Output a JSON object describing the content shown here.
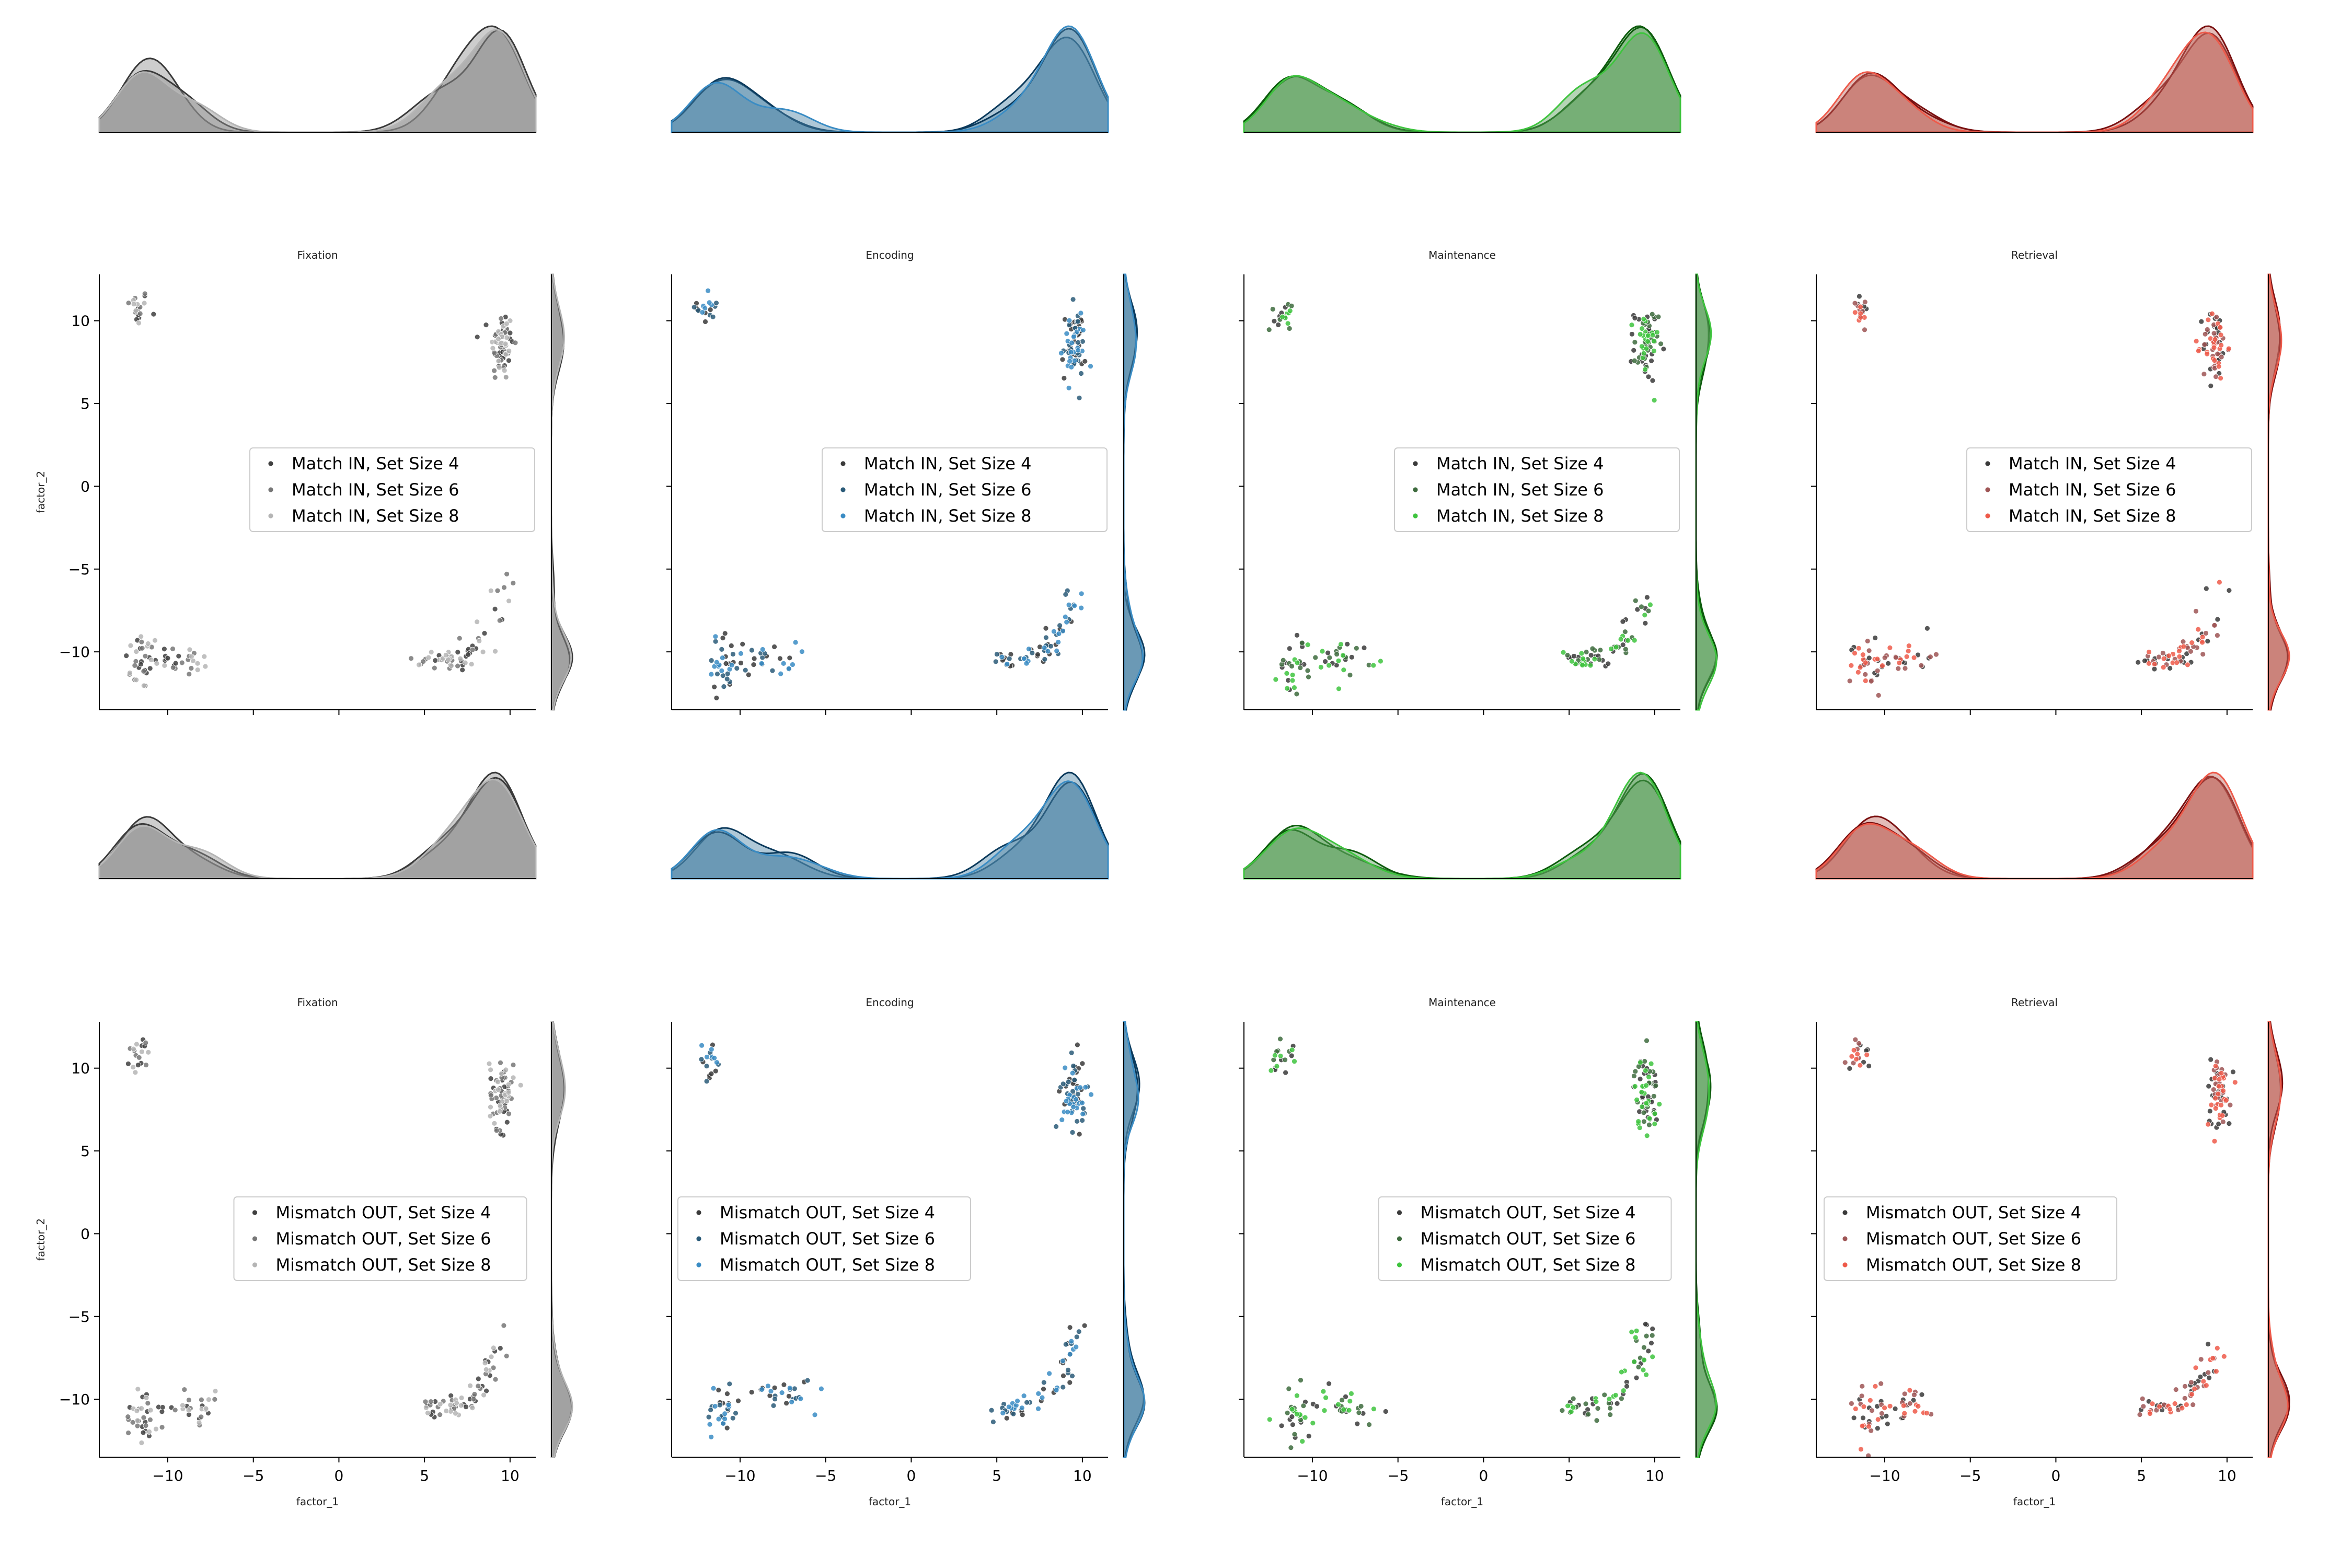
{
  "figure": {
    "xlabel": "factor_1",
    "ylabel": "factor_2"
  },
  "chart_data": [
    {
      "type": "scatter",
      "title": "Fixation",
      "condition": "match",
      "color_key": "gray",
      "xlabel": "",
      "ylabel": "factor_2",
      "xlim": [
        -14,
        11.5
      ],
      "ylim": [
        -13.5,
        12.8
      ],
      "xticks": [
        "-10",
        "-5",
        "0",
        "5",
        "10"
      ],
      "yticks": [
        "10",
        "5",
        "0",
        "−5",
        "−10"
      ],
      "legend": [
        "Match IN, Set Size 4",
        "Match IN, Set Size 6",
        "Match IN, Set Size 8"
      ],
      "legend_position": "center-right",
      "clusters": [
        {
          "x": -11.8,
          "y": 10.8
        },
        {
          "x": -11.5,
          "y": -10.6
        },
        {
          "x": -9,
          "y": -10.5
        },
        {
          "x": 9.5,
          "y": 8.5
        },
        {
          "x": 8,
          "y": -9.5
        }
      ]
    },
    {
      "type": "scatter",
      "title": "Encoding",
      "condition": "match",
      "color_key": "blue",
      "xlabel": "",
      "ylabel": "",
      "xlim": [
        -14,
        11.5
      ],
      "ylim": [
        -13.5,
        12.8
      ],
      "xticks": [
        "-10",
        "-5",
        "0",
        "5",
        "10"
      ],
      "yticks": [
        "10",
        "5",
        "0",
        "−5",
        "−10"
      ],
      "legend": [
        "Match IN, Set Size 4",
        "Match IN, Set Size 6",
        "Match IN, Set Size 8"
      ],
      "legend_position": "center-right",
      "clusters": [
        {
          "x": -11.8,
          "y": 10.8
        },
        {
          "x": -11,
          "y": -10.7
        },
        {
          "x": -8.5,
          "y": -10.4
        },
        {
          "x": 9.5,
          "y": 8.5
        },
        {
          "x": 8,
          "y": -9.5
        }
      ]
    },
    {
      "type": "scatter",
      "title": "Maintenance",
      "condition": "match",
      "color_key": "green",
      "xlabel": "",
      "ylabel": "",
      "xlim": [
        -14,
        11.5
      ],
      "ylim": [
        -13.5,
        12.8
      ],
      "xticks": [
        "-10",
        "-5",
        "0",
        "5",
        "10"
      ],
      "yticks": [
        "10",
        "5",
        "0",
        "−5",
        "−10"
      ],
      "legend": [
        "Match IN, Set Size 4",
        "Match IN, Set Size 6",
        "Match IN, Set Size 8"
      ],
      "legend_position": "center-right",
      "clusters": [
        {
          "x": -11.8,
          "y": 10.5
        },
        {
          "x": -11,
          "y": -10.8
        },
        {
          "x": -8,
          "y": -10.3
        },
        {
          "x": 9.5,
          "y": 8.5
        },
        {
          "x": 8,
          "y": -9.5
        }
      ]
    },
    {
      "type": "scatter",
      "title": "Retrieval",
      "condition": "match",
      "color_key": "red",
      "xlabel": "",
      "ylabel": "",
      "xlim": [
        -14,
        11.5
      ],
      "ylim": [
        -13.5,
        12.8
      ],
      "xticks": [
        "-10",
        "-5",
        "0",
        "5",
        "10"
      ],
      "yticks": [
        "10",
        "5",
        "0",
        "−5",
        "−10"
      ],
      "legend": [
        "Match IN, Set Size 4",
        "Match IN, Set Size 6",
        "Match IN, Set Size 8"
      ],
      "legend_position": "center-right",
      "clusters": [
        {
          "x": -11.5,
          "y": 10.9
        },
        {
          "x": -11,
          "y": -10.8
        },
        {
          "x": -9,
          "y": -10.3
        },
        {
          "x": 9.3,
          "y": 8.5
        },
        {
          "x": 8,
          "y": -9.5
        }
      ]
    },
    {
      "type": "scatter",
      "title": "Fixation",
      "condition": "mismatch",
      "color_key": "gray",
      "xlabel": "factor_1",
      "ylabel": "factor_2",
      "xlim": [
        -14,
        11.5
      ],
      "ylim": [
        -13.5,
        12.8
      ],
      "xticks": [
        "−10",
        "−5",
        "0",
        "5",
        "10"
      ],
      "yticks": [
        "10",
        "5",
        "0",
        "−5",
        "−10"
      ],
      "legend": [
        "Mismatch OUT, Set Size 4",
        "Mismatch OUT, Set Size 6",
        "Mismatch OUT, Set Size 8"
      ],
      "legend_position": "center",
      "clusters": [
        {
          "x": -11.7,
          "y": 10.8
        },
        {
          "x": -11.5,
          "y": -10.8
        },
        {
          "x": -8.5,
          "y": -10.5
        },
        {
          "x": 9.5,
          "y": 8.5
        },
        {
          "x": 8,
          "y": -9.5
        }
      ]
    },
    {
      "type": "scatter",
      "title": "Encoding",
      "condition": "mismatch",
      "color_key": "blue",
      "xlabel": "factor_1",
      "ylabel": "",
      "xlim": [
        -14,
        11.5
      ],
      "ylim": [
        -13.5,
        12.8
      ],
      "xticks": [
        "−10",
        "−5",
        "0",
        "5",
        "10"
      ],
      "yticks": [
        "10",
        "5",
        "0",
        "−5",
        "−10"
      ],
      "legend": [
        "Mismatch OUT, Set Size 4",
        "Mismatch OUT, Set Size 6",
        "Mismatch OUT, Set Size 8"
      ],
      "legend_position": "center",
      "clusters": [
        {
          "x": -11.8,
          "y": 10.5
        },
        {
          "x": -11,
          "y": -10.7
        },
        {
          "x": -7.5,
          "y": -9.5
        },
        {
          "x": 9.5,
          "y": 8.5
        },
        {
          "x": 8,
          "y": -9.5
        }
      ]
    },
    {
      "type": "scatter",
      "title": "Maintenance",
      "condition": "mismatch",
      "color_key": "green",
      "xlabel": "factor_1",
      "ylabel": "",
      "xlim": [
        -14,
        11.5
      ],
      "ylim": [
        -13.5,
        12.8
      ],
      "xticks": [
        "−10",
        "−5",
        "0",
        "5",
        "10"
      ],
      "yticks": [
        "10",
        "5",
        "0",
        "−5",
        "−10"
      ],
      "legend": [
        "Mismatch OUT, Set Size 4",
        "Mismatch OUT, Set Size 6",
        "Mismatch OUT, Set Size 8"
      ],
      "legend_position": "center",
      "clusters": [
        {
          "x": -11.8,
          "y": 10.8
        },
        {
          "x": -11,
          "y": -11
        },
        {
          "x": -8,
          "y": -10.3
        },
        {
          "x": 9.5,
          "y": 8.5
        },
        {
          "x": 8,
          "y": -9.5
        }
      ]
    },
    {
      "type": "scatter",
      "title": "Retrieval",
      "condition": "mismatch",
      "color_key": "red",
      "xlabel": "factor_1",
      "ylabel": "",
      "xlim": [
        -14,
        11.5
      ],
      "ylim": [
        -13.5,
        12.8
      ],
      "xticks": [
        "−10",
        "−5",
        "0",
        "5",
        "10"
      ],
      "yticks": [
        "10",
        "5",
        "0",
        "−5",
        "−10"
      ],
      "legend": [
        "Mismatch OUT, Set Size 4",
        "Mismatch OUT, Set Size 6",
        "Mismatch OUT, Set Size 8"
      ],
      "legend_position": "center-left",
      "clusters": [
        {
          "x": -11.5,
          "y": 10.8
        },
        {
          "x": -11,
          "y": -10.8
        },
        {
          "x": -8.5,
          "y": -10.3
        },
        {
          "x": 9.5,
          "y": 8.5
        },
        {
          "x": 8,
          "y": -9.5
        }
      ]
    }
  ],
  "palette": {
    "gray": {
      "series": [
        "#404040",
        "#777777",
        "#b5b5b5"
      ],
      "fill": "#909090",
      "line": "#3a3a3a"
    },
    "blue": {
      "series": [
        "#3a3a3a",
        "#2a5a78",
        "#3a8cc4"
      ],
      "fill": "#4d84a6",
      "line": "#0b3a5c"
    },
    "green": {
      "series": [
        "#3a3a3a",
        "#3d6b3d",
        "#3ec43e"
      ],
      "fill": "#5aa05a",
      "line": "#0d5c0d"
    },
    "red": {
      "series": [
        "#3a3a3a",
        "#9e5555",
        "#ee5a4a"
      ],
      "fill": "#c26a62",
      "line": "#7a1010"
    }
  }
}
